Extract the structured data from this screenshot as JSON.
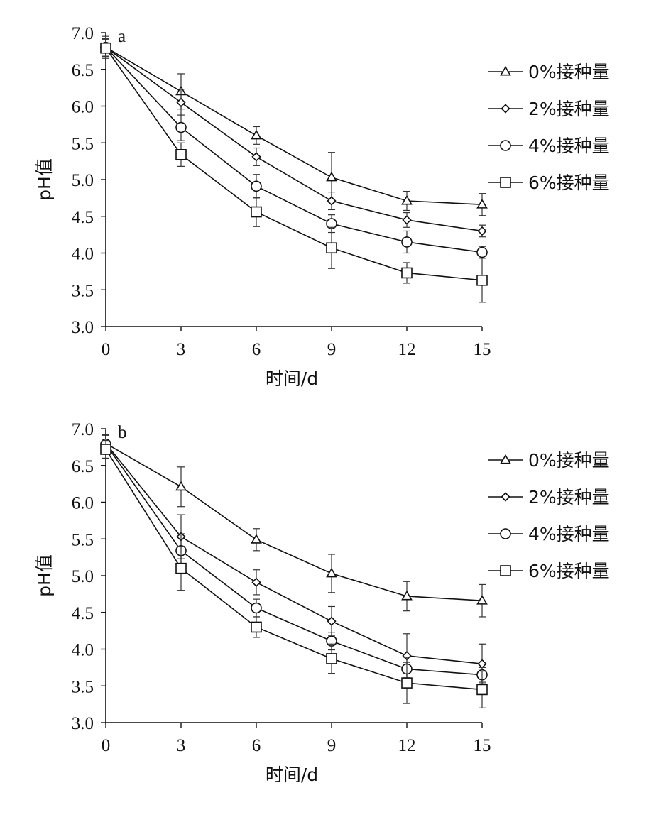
{
  "chart_data": [
    {
      "type": "line",
      "panel_label": "a",
      "xlabel": "时间/d",
      "ylabel": "pH值",
      "x": [
        0,
        3,
        6,
        9,
        12,
        15
      ],
      "x_ticks": [
        "0",
        "3",
        "6",
        "9",
        "12",
        "15"
      ],
      "ylim": [
        3.0,
        7.0
      ],
      "y_ticks": [
        "3.0",
        "3.5",
        "4.0",
        "4.5",
        "5.0",
        "5.5",
        "6.0",
        "6.5",
        "7.0"
      ],
      "legend_position": "right",
      "series": [
        {
          "name": "0%接种量",
          "marker": "triangle",
          "values": [
            6.8,
            6.2,
            5.6,
            5.03,
            4.71,
            4.66
          ],
          "errors": [
            0.15,
            0.24,
            0.12,
            0.34,
            0.13,
            0.15
          ]
        },
        {
          "name": "2%接种量",
          "marker": "diamond",
          "values": [
            6.8,
            6.05,
            5.31,
            4.71,
            4.45,
            4.3
          ],
          "errors": [
            0.12,
            0.18,
            0.12,
            0.12,
            0.1,
            0.08
          ]
        },
        {
          "name": "4%接种量",
          "marker": "circle",
          "values": [
            6.8,
            5.71,
            4.91,
            4.4,
            4.15,
            4.01
          ],
          "errors": [
            0.12,
            0.18,
            0.16,
            0.12,
            0.15,
            0.08
          ]
        },
        {
          "name": "6%接种量",
          "marker": "square",
          "values": [
            6.79,
            5.34,
            4.56,
            4.07,
            3.73,
            3.63
          ],
          "errors": [
            0.12,
            0.16,
            0.2,
            0.28,
            0.14,
            0.3
          ]
        }
      ]
    },
    {
      "type": "line",
      "panel_label": "b",
      "xlabel": "时间/d",
      "ylabel": "pH值",
      "x": [
        0,
        3,
        6,
        9,
        12,
        15
      ],
      "x_ticks": [
        "0",
        "3",
        "6",
        "9",
        "12",
        "15"
      ],
      "ylim": [
        3.0,
        7.0
      ],
      "y_ticks": [
        "3.0",
        "3.5",
        "4.0",
        "4.5",
        "5.0",
        "5.5",
        "6.0",
        "6.5",
        "7.0"
      ],
      "legend_position": "right",
      "series": [
        {
          "name": "0%接种量",
          "marker": "triangle",
          "values": [
            6.8,
            6.21,
            5.49,
            5.03,
            4.72,
            4.66
          ],
          "errors": [
            0.12,
            0.27,
            0.15,
            0.26,
            0.2,
            0.22
          ]
        },
        {
          "name": "2%接种量",
          "marker": "diamond",
          "values": [
            6.8,
            5.53,
            4.91,
            4.38,
            3.91,
            3.8
          ],
          "errors": [
            0.12,
            0.3,
            0.17,
            0.2,
            0.3,
            0.27
          ]
        },
        {
          "name": "4%接种量",
          "marker": "circle",
          "values": [
            6.79,
            5.34,
            4.56,
            4.11,
            3.73,
            3.65
          ],
          "errors": [
            0.12,
            0.23,
            0.12,
            0.12,
            0.16,
            0.1
          ]
        },
        {
          "name": "6%接种量",
          "marker": "square",
          "values": [
            6.72,
            5.1,
            4.3,
            3.87,
            3.54,
            3.45
          ],
          "errors": [
            0.12,
            0.3,
            0.14,
            0.2,
            0.28,
            0.25
          ]
        }
      ]
    }
  ]
}
